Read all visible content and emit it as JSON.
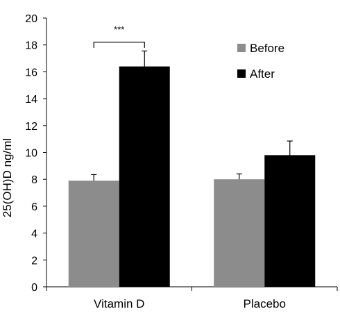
{
  "chart_data": {
    "type": "bar",
    "title": "",
    "xlabel": "",
    "ylabel": "25(OH)D ng/ml",
    "ylim": [
      0,
      20
    ],
    "yticks": [
      0,
      2,
      4,
      6,
      8,
      10,
      12,
      14,
      16,
      18,
      20
    ],
    "categories": [
      "Vitamin D",
      "Placebo"
    ],
    "series": [
      {
        "name": "Before",
        "color": "#8c8c8c",
        "values": [
          7.9,
          8.0
        ],
        "errors": [
          0.45,
          0.4
        ]
      },
      {
        "name": "After",
        "color": "#000000",
        "values": [
          16.4,
          9.8
        ],
        "errors": [
          1.15,
          1.05
        ]
      }
    ],
    "legend": "top-right",
    "grid": false,
    "annotations": [
      {
        "text": "***",
        "category": "Vitamin D",
        "type": "significance-bracket",
        "y": 18.2
      }
    ]
  }
}
